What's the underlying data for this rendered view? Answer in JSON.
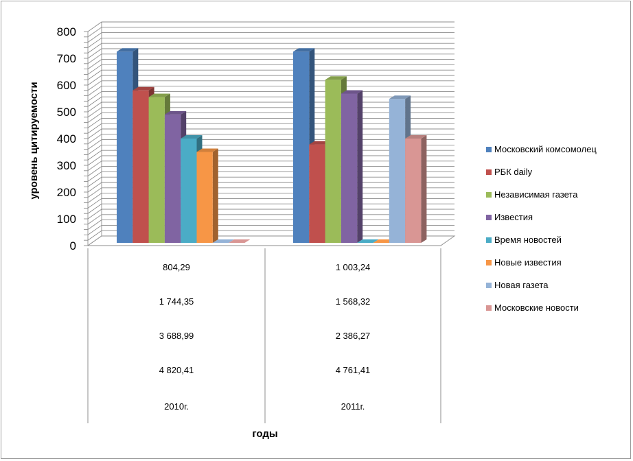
{
  "chart_data": {
    "type": "bar",
    "ylabel": "уровень цитируемости",
    "xlabel": "годы",
    "ylim": [
      0,
      800
    ],
    "yticks": [
      0,
      100,
      200,
      300,
      400,
      500,
      600,
      700,
      800
    ],
    "grid": true,
    "legend_position": "right",
    "categories": [
      "2010г.",
      "2011г."
    ],
    "table_rows": [
      [
        "804,29",
        "1 003,24"
      ],
      [
        "1 744,35",
        "1 568,32"
      ],
      [
        "3 688,99",
        "2 386,27"
      ],
      [
        "4 820,41",
        "4 761,41"
      ]
    ],
    "series": [
      {
        "name": "Московский комсомолец",
        "color": "#4f81bd",
        "values": [
          725,
          725
        ]
      },
      {
        "name": "РБК daily",
        "color": "#c0504d",
        "values": [
          580,
          378
        ]
      },
      {
        "name": "Независимая газета",
        "color": "#9bbb59",
        "values": [
          555,
          620
        ]
      },
      {
        "name": "Известия",
        "color": "#8064a2",
        "values": [
          490,
          568
        ]
      },
      {
        "name": "Время новостей",
        "color": "#4bacc6",
        "values": [
          400,
          0
        ]
      },
      {
        "name": "Новые известия",
        "color": "#f79646",
        "values": [
          350,
          0
        ]
      },
      {
        "name": "Новая газета",
        "color": "#95b3d7",
        "values": [
          0,
          548
        ]
      },
      {
        "name": "Московские новости",
        "color": "#d99694",
        "values": [
          0,
          400
        ]
      }
    ]
  }
}
